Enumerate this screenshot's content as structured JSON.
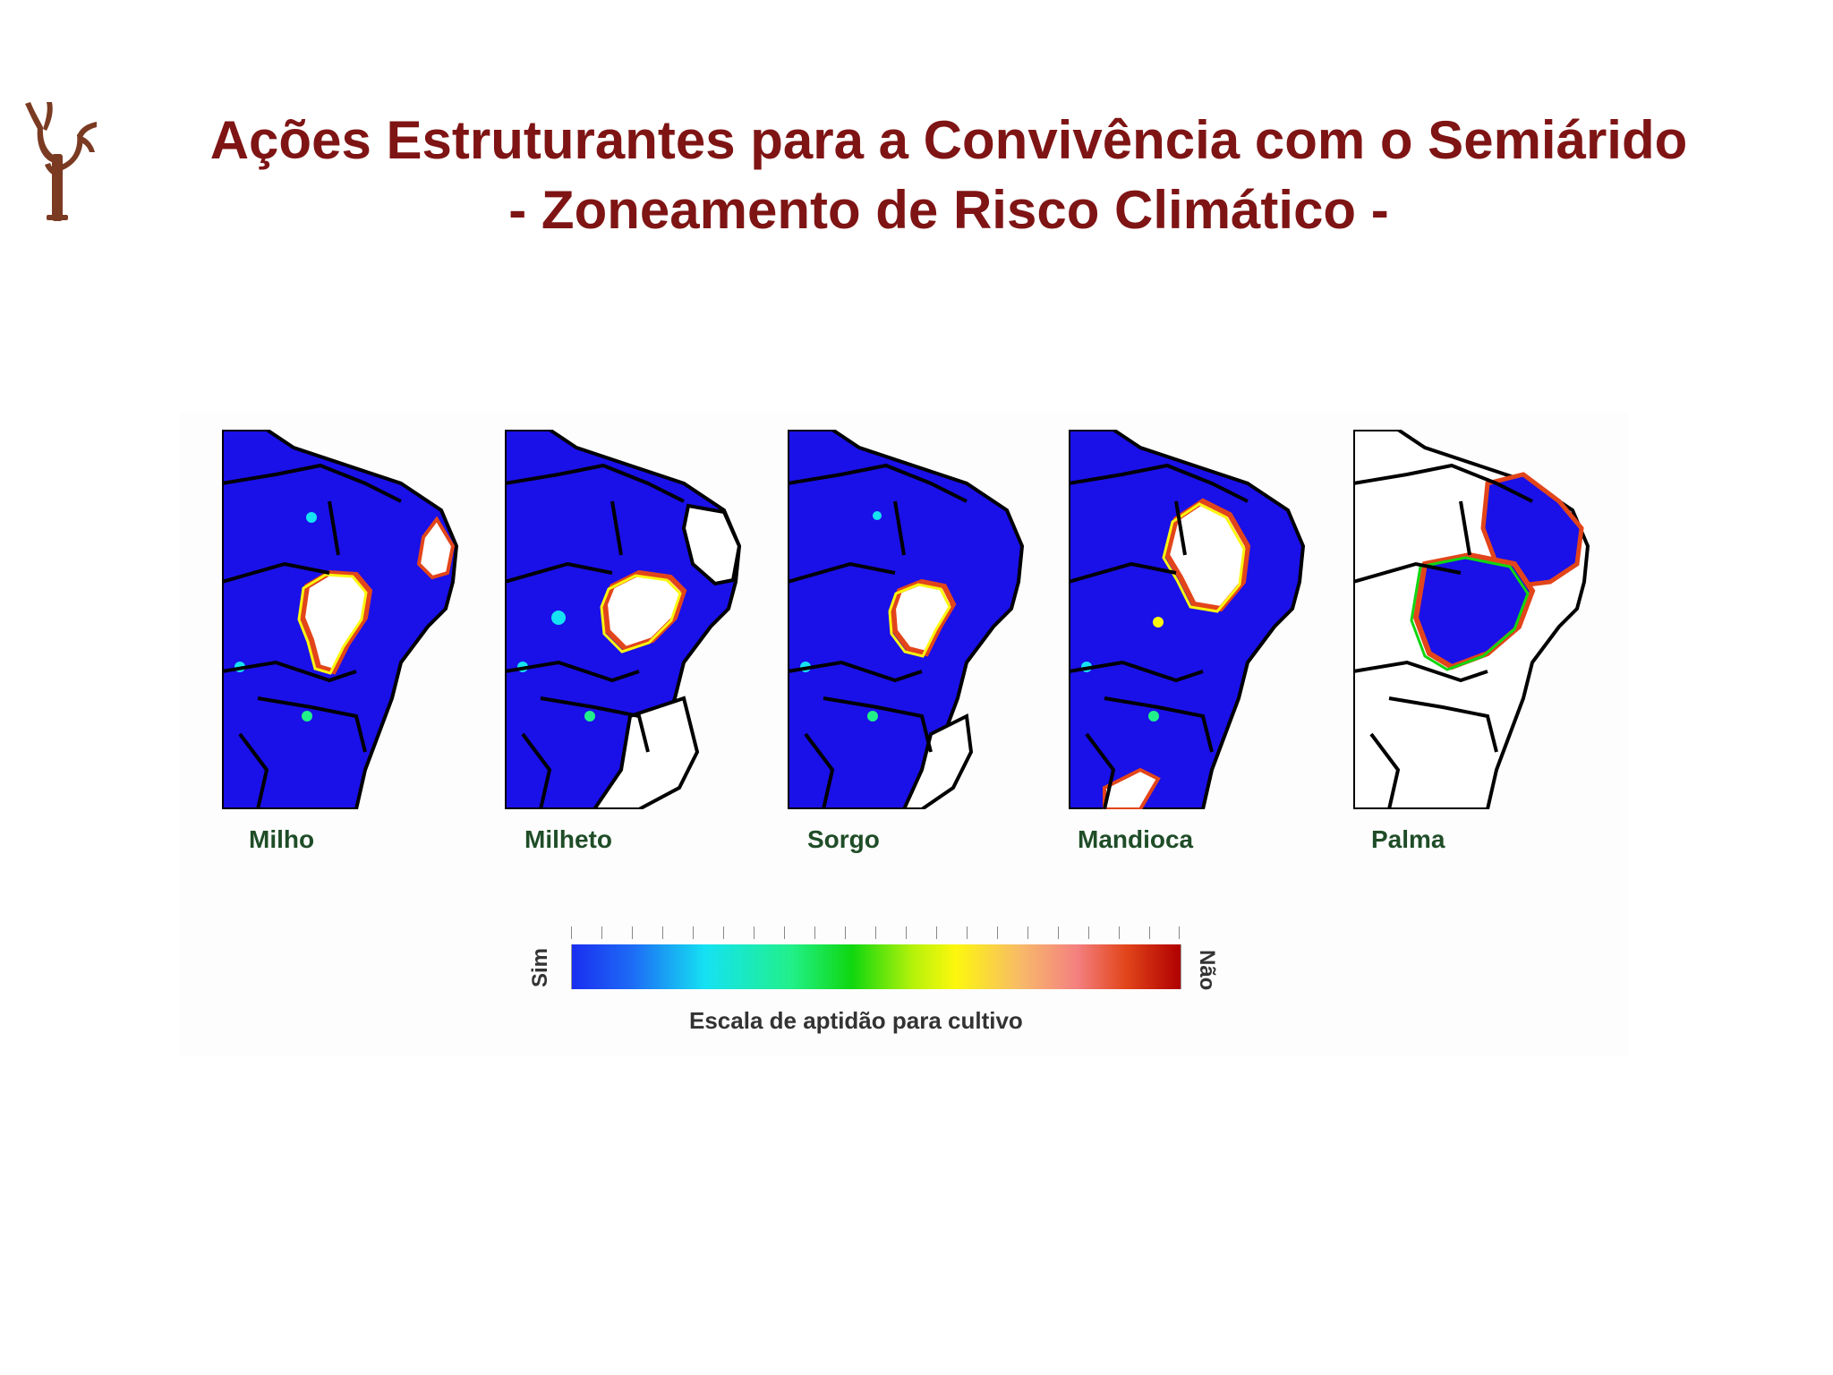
{
  "slide": {
    "title_line1": "Ações Estruturantes para a Convivência com o Semiárido",
    "title_line2": "- Zoneamento de Risco Climático -",
    "logo_icon": "cactus-tree-logo",
    "title_color": "#7f1414"
  },
  "maps": [
    {
      "label": "Milho"
    },
    {
      "label": "Milheto"
    },
    {
      "label": "Sorgo"
    },
    {
      "label": "Mandioca"
    },
    {
      "label": "Palma"
    }
  ],
  "scale": {
    "low_label": "Sim",
    "high_label": "Não",
    "caption": "Escala de aptidão para cultivo",
    "low_color": "#1a2ef0",
    "high_color": "#b00000"
  }
}
